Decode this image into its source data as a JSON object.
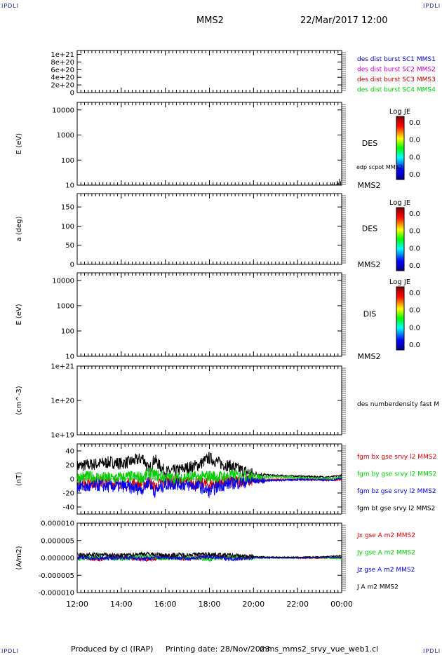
{
  "header": {
    "corner_label": "IPDLI",
    "spacecraft": "MMS2",
    "datetime": "22/Mar/2017 12:00"
  },
  "footer": {
    "producer": "Produced by cl (IRAP)",
    "printing": "Printing date: 28/Nov/2023",
    "filename": "mms_mms2_srvy_vue_web1.cl"
  },
  "time_axis": {
    "ticks": [
      "12:00",
      "14:00",
      "16:00",
      "18:00",
      "20:00",
      "22:00",
      "00:00"
    ],
    "range_hours": [
      12,
      24
    ]
  },
  "chart_data": [
    {
      "type": "line",
      "panel": "burst",
      "ylabel": "",
      "ylim": [
        0,
        1.1e+21
      ],
      "yticks": [
        "1e+21",
        "8e+20",
        "6e+20",
        "4e+20",
        "2e+20",
        "0"
      ],
      "ytick_values": [
        1e+21,
        8e+20,
        6e+20,
        4e+20,
        2e+20,
        0
      ],
      "series": [
        {
          "name": "des dist burst SC1 MMS1",
          "color": "#0000cc",
          "values": [
            0
          ]
        },
        {
          "name": "des dist burst SC2 MMS2",
          "color": "#cc00cc",
          "values": [
            0
          ]
        },
        {
          "name": "des dist burst SC3 MMS3",
          "color": "#cc0000",
          "values": [
            0
          ]
        },
        {
          "name": "des dist burst SC4 MMS4",
          "color": "#00cc00",
          "values": [
            0
          ]
        }
      ]
    },
    {
      "type": "heatmap",
      "panel": "des-energy",
      "ylabel": "E (eV)",
      "log": true,
      "yticks": [
        "10000",
        "1000",
        "100",
        "10"
      ],
      "ytick_values": [
        10000,
        1000,
        100,
        10
      ],
      "ylim": [
        10,
        20000
      ],
      "label": "DES",
      "spacecraft": "MMS2",
      "overlay_label": "edp scpot MMS2",
      "overlay_x": [
        23.55,
        23.6,
        23.75,
        23.8,
        23.85,
        23.9,
        23.95,
        24
      ],
      "overlay_y": [
        11,
        13,
        11,
        15,
        12,
        18,
        14,
        16
      ],
      "colorbar": {
        "title": "Log JE",
        "ticks": [
          "0.0",
          "0.0",
          "0.0",
          "0.0"
        ]
      }
    },
    {
      "type": "heatmap",
      "panel": "des-pitch",
      "ylabel": "a (deg)",
      "yticks": [
        "150",
        "100",
        "50",
        "0"
      ],
      "ytick_values": [
        150,
        100,
        50,
        0
      ],
      "ylim": [
        0,
        185
      ],
      "label": "DES",
      "spacecraft": "MMS2",
      "colorbar": {
        "title": "Log JE",
        "ticks": [
          "0.0",
          "0.0",
          "0.0",
          "0.0"
        ]
      }
    },
    {
      "type": "heatmap",
      "panel": "dis-energy",
      "ylabel": "E (eV)",
      "log": true,
      "yticks": [
        "10000",
        "1000",
        "100",
        "10"
      ],
      "ytick_values": [
        10000,
        1000,
        100,
        10
      ],
      "ylim": [
        10,
        20000
      ],
      "label": "DIS",
      "spacecraft": "MMS2",
      "colorbar": {
        "title": "Log JE",
        "ticks": [
          "0.0",
          "0.0",
          "0.0",
          "0.0"
        ]
      }
    },
    {
      "type": "line",
      "panel": "density",
      "ylabel": "(cm^-3)",
      "log": true,
      "yticks": [
        "1e+21",
        "1e+20",
        "1e+19"
      ],
      "ytick_values": [
        1e+21,
        1e+20,
        1e+19
      ],
      "ylim": [
        1e+19,
        1e+21
      ],
      "series": [
        {
          "name": "des numberdensity fast M",
          "color": "#000000",
          "values": []
        }
      ]
    },
    {
      "type": "line",
      "panel": "magnetic-field",
      "ylabel": "(nT)",
      "yticks": [
        "40",
        "20",
        "0",
        "-20",
        "-40"
      ],
      "ytick_values": [
        40,
        20,
        0,
        -20,
        -40
      ],
      "ylim": [
        -50,
        50
      ],
      "x": [
        12,
        12.5,
        13,
        13.5,
        14,
        14.5,
        15,
        15.25,
        15.5,
        16,
        16.5,
        17,
        17.5,
        18,
        18.5,
        19,
        19.5,
        20,
        21,
        22,
        23,
        23.5,
        24
      ],
      "series": [
        {
          "name": "fgm bx gse srvy l2 MMS2",
          "color": "#dd0000",
          "values": [
            -4,
            -5,
            -4,
            -6,
            -5,
            -6,
            -8,
            -4,
            -12,
            -3,
            -4,
            -5,
            -6,
            -8,
            -5,
            -4,
            -3,
            -2,
            -1,
            -1,
            -1,
            -2,
            -1
          ]
        },
        {
          "name": "fgm by gse srvy l2 MMS2",
          "color": "#00cc00",
          "values": [
            2,
            3,
            2,
            1,
            2,
            3,
            2,
            8,
            6,
            2,
            1,
            3,
            2,
            4,
            3,
            5,
            4,
            3,
            3,
            2,
            1,
            1,
            2
          ]
        },
        {
          "name": "fgm bz gse srvy l2 MMS2",
          "color": "#0000ee",
          "values": [
            -10,
            -12,
            -9,
            -11,
            -10,
            -13,
            -14,
            -3,
            -18,
            -8,
            -7,
            -9,
            -10,
            -18,
            -9,
            -6,
            -5,
            -3,
            -2,
            -1,
            -1,
            -2,
            1
          ]
        },
        {
          "name": "fgm bt gse srvy l2 MMS2",
          "color": "#000000",
          "values": [
            18,
            20,
            22,
            24,
            22,
            25,
            30,
            12,
            28,
            10,
            12,
            16,
            20,
            30,
            22,
            18,
            12,
            7,
            5,
            4,
            3,
            3,
            5
          ]
        }
      ]
    },
    {
      "type": "line",
      "panel": "current",
      "ylabel": "(A/m2)",
      "yticks": [
        "0.000010",
        "0.000005",
        "0.000000",
        "-0.000005",
        "-0.000010"
      ],
      "ytick_values": [
        1e-05,
        5e-06,
        0,
        -5e-06,
        -1e-05
      ],
      "ylim": [
        -1e-05,
        1e-05
      ],
      "x": [
        12,
        13,
        14,
        15,
        16,
        17,
        18,
        19,
        20,
        21,
        22,
        23,
        24
      ],
      "series": [
        {
          "name": "Jx gse A m2 MMS2",
          "color": "#dd0000",
          "values": [
            3e-07,
            -4e-07,
            3e-07,
            -5e-07,
            2e-07,
            -3e-07,
            4e-07,
            -2e-07,
            1e-07,
            0,
            0,
            -1e-07,
            2e-07
          ]
        },
        {
          "name": "Jy gse A m2 MMS2",
          "color": "#00cc00",
          "values": [
            -2e-07,
            3e-07,
            -3e-07,
            4e-07,
            -2e-07,
            3e-07,
            -4e-07,
            2e-07,
            -1e-07,
            0,
            0,
            1e-07,
            -2e-07
          ]
        },
        {
          "name": "Jz gse A m2 MMS2",
          "color": "#0000ee",
          "values": [
            2e-07,
            -2e-07,
            2e-07,
            -3e-07,
            3e-07,
            -2e-07,
            3e-07,
            -3e-07,
            1e-07,
            0,
            0,
            1e-07,
            2e-07
          ]
        },
        {
          "name": "J A m2 MMS2",
          "color": "#000000",
          "values": [
            8e-07,
            9e-07,
            7e-07,
            1.2e-06,
            8e-07,
            9e-07,
            1.1e-06,
            7e-07,
            4e-07,
            2e-07,
            2e-07,
            3e-07,
            6e-07
          ]
        }
      ]
    }
  ]
}
